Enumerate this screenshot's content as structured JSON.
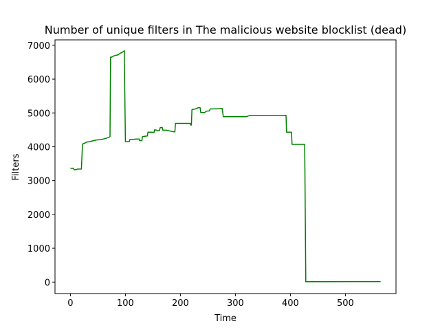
{
  "chart_data": {
    "type": "line",
    "title": "Number of unique filters in The malicious website blocklist (dead)",
    "xlabel": "Time",
    "ylabel": "Filters",
    "xlim": [
      -28,
      592
    ],
    "ylim": [
      -340,
      7160
    ],
    "xticks": [
      0,
      100,
      200,
      300,
      400,
      500
    ],
    "yticks": [
      0,
      1000,
      2000,
      3000,
      4000,
      5000,
      6000,
      7000
    ],
    "grid": false,
    "legend": "none",
    "series": [
      {
        "color": "#008000",
        "points": [
          [
            0,
            3370
          ],
          [
            3,
            3360
          ],
          [
            5,
            3370
          ],
          [
            7,
            3320
          ],
          [
            10,
            3320
          ],
          [
            13,
            3340
          ],
          [
            20,
            3340
          ],
          [
            22,
            4080
          ],
          [
            25,
            4100
          ],
          [
            30,
            4140
          ],
          [
            35,
            4150
          ],
          [
            42,
            4180
          ],
          [
            47,
            4200
          ],
          [
            55,
            4210
          ],
          [
            60,
            4230
          ],
          [
            65,
            4250
          ],
          [
            70,
            4280
          ],
          [
            72,
            4300
          ],
          [
            73,
            6650
          ],
          [
            75,
            6650
          ],
          [
            78,
            6680
          ],
          [
            82,
            6700
          ],
          [
            87,
            6720
          ],
          [
            90,
            6760
          ],
          [
            95,
            6800
          ],
          [
            98,
            6840
          ],
          [
            100,
            4150
          ],
          [
            107,
            4150
          ],
          [
            108,
            4210
          ],
          [
            115,
            4220
          ],
          [
            120,
            4230
          ],
          [
            125,
            4230
          ],
          [
            126,
            4180
          ],
          [
            130,
            4180
          ],
          [
            131,
            4300
          ],
          [
            135,
            4310
          ],
          [
            140,
            4320
          ],
          [
            141,
            4430
          ],
          [
            148,
            4430
          ],
          [
            152,
            4420
          ],
          [
            153,
            4500
          ],
          [
            157,
            4490
          ],
          [
            159,
            4470
          ],
          [
            162,
            4480
          ],
          [
            163,
            4560
          ],
          [
            167,
            4570
          ],
          [
            168,
            4490
          ],
          [
            175,
            4490
          ],
          [
            185,
            4450
          ],
          [
            188,
            4440
          ],
          [
            190,
            4440
          ],
          [
            191,
            4690
          ],
          [
            200,
            4690
          ],
          [
            210,
            4690
          ],
          [
            218,
            4690
          ],
          [
            219,
            4640
          ],
          [
            220,
            4640
          ],
          [
            221,
            5100
          ],
          [
            225,
            5110
          ],
          [
            230,
            5140
          ],
          [
            234,
            5160
          ],
          [
            236,
            5150
          ],
          [
            237,
            5010
          ],
          [
            244,
            5010
          ],
          [
            247,
            5050
          ],
          [
            253,
            5060
          ],
          [
            254,
            5120
          ],
          [
            265,
            5120
          ],
          [
            276,
            5130
          ],
          [
            278,
            4890
          ],
          [
            300,
            4890
          ],
          [
            320,
            4890
          ],
          [
            325,
            4920
          ],
          [
            360,
            4920
          ],
          [
            392,
            4930
          ],
          [
            393,
            4430
          ],
          [
            402,
            4430
          ],
          [
            403,
            4070
          ],
          [
            426,
            4070
          ],
          [
            428,
            10
          ],
          [
            470,
            12
          ],
          [
            520,
            13
          ],
          [
            564,
            13
          ]
        ]
      }
    ]
  }
}
